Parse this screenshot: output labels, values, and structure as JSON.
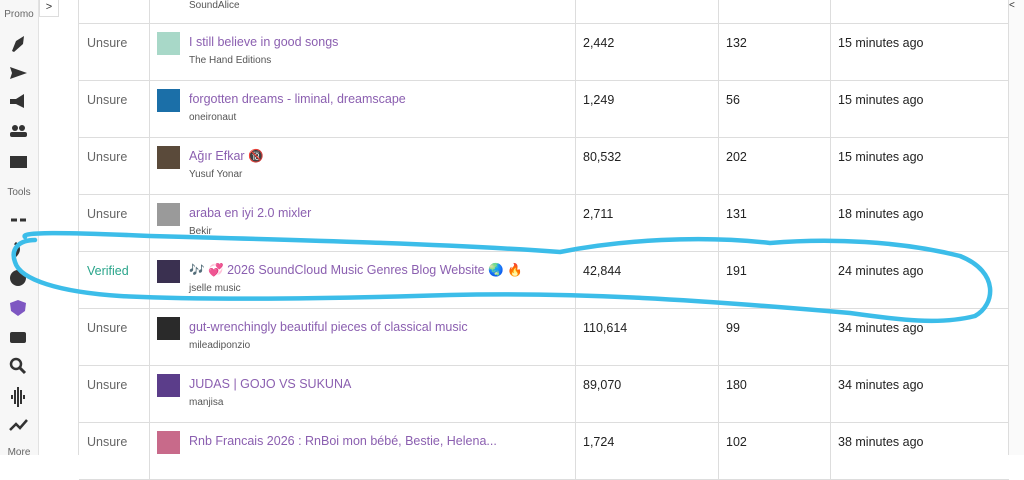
{
  "sidebar": {
    "promo_label": "Promo",
    "tools_label": "Tools",
    "more_label": "More"
  },
  "table": {
    "partial_row": {
      "author": "SoundAlice"
    },
    "rows": [
      {
        "status": "Unsure",
        "title": "I still believe in good songs",
        "author": "The Hand Editions",
        "plays": "2,442",
        "likes": "132",
        "time": "15 minutes ago"
      },
      {
        "status": "Unsure",
        "title": "forgotten dreams - liminal, dreamscape",
        "author": "oneironaut",
        "plays": "1,249",
        "likes": "56",
        "time": "15 minutes ago"
      },
      {
        "status": "Unsure",
        "title": "Ağır Efkar 🔞",
        "author": "Yusuf Yonar",
        "plays": "80,532",
        "likes": "202",
        "time": "15 minutes ago"
      },
      {
        "status": "Unsure",
        "title": "araba en iyi 2.0 mixler",
        "author": "Bekir",
        "plays": "2,711",
        "likes": "131",
        "time": "18 minutes ago"
      },
      {
        "status": "Verified",
        "title": "🎶 💞 2026 SoundCloud Music Genres Blog Website 🌏 🔥",
        "author": "jselle music",
        "plays": "42,844",
        "likes": "191",
        "time": "24 minutes ago"
      },
      {
        "status": "Unsure",
        "title": "gut-wrenchingly beautiful pieces of classical music",
        "author": "mileadiponzio",
        "plays": "110,614",
        "likes": "99",
        "time": "34 minutes ago"
      },
      {
        "status": "Unsure",
        "title": "JUDAS | GOJO VS SUKUNA",
        "author": "manjisa",
        "plays": "89,070",
        "likes": "180",
        "time": "34 minutes ago"
      },
      {
        "status": "Unsure",
        "title": "Rnb Francais 2026 : RnBoi mon bébé, Bestie, Helena...",
        "author": "",
        "plays": "1,724",
        "likes": "102",
        "time": "38 minutes ago"
      }
    ]
  }
}
